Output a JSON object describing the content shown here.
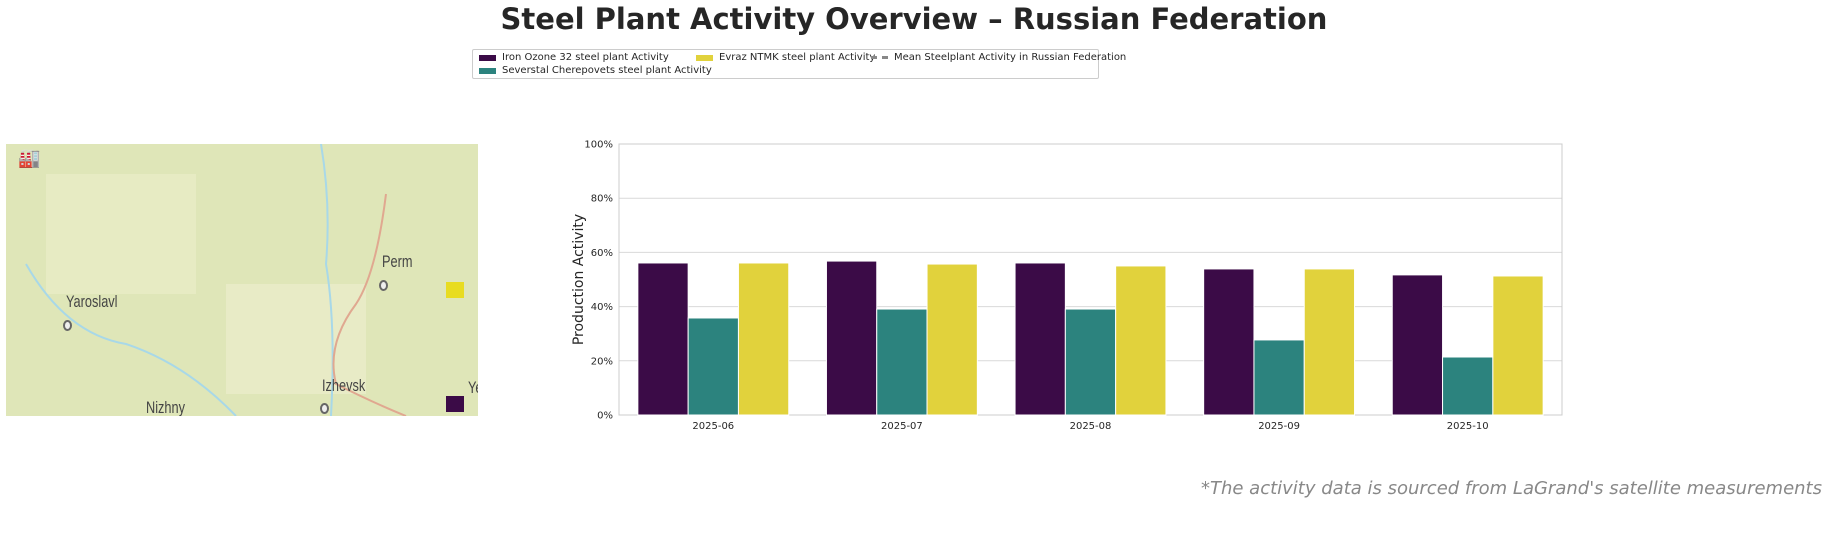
{
  "title": "Steel Plant Activity Overview – Russian Federation",
  "legend": [
    {
      "label": "Iron Ozone 32 steel plant Activity",
      "color": "#3b0b47"
    },
    {
      "label": "Severstal Cherepovets steel plant Activity",
      "color": "#2c837e"
    },
    {
      "label": "Evraz NTMK steel plant Activity",
      "color": "#e1d23c"
    },
    {
      "label": "Mean Steelplant Activity in Russian Federation",
      "color": "#888888"
    }
  ],
  "map": {
    "cities": [
      "Perm",
      "Yaroslavl",
      "Izhevsk",
      "Nizhny",
      "Ye"
    ]
  },
  "chart_data": {
    "type": "bar",
    "categories": [
      "2025-06",
      "2025-07",
      "2025-08",
      "2025-09",
      "2025-10"
    ],
    "series": [
      {
        "name": "Iron Ozone 32 steel plant Activity",
        "values": [
          56.1,
          56.8,
          56.1,
          53.9,
          51.7
        ]
      },
      {
        "name": "Severstal Cherepovets steel plant Activity",
        "values": [
          35.8,
          39.1,
          39.1,
          27.7,
          21.4
        ]
      },
      {
        "name": "Evraz NTMK steel plant Activity",
        "values": [
          56.1,
          55.7,
          55.0,
          53.9,
          51.3
        ]
      }
    ],
    "ylabel": "Production Activity",
    "ylim": [
      0,
      100
    ],
    "yticks": [
      "0%",
      "20%",
      "40%",
      "60%",
      "80%",
      "100%"
    ],
    "grid": true
  },
  "source": "*The activity data is sourced from LaGrand's satellite measurements"
}
